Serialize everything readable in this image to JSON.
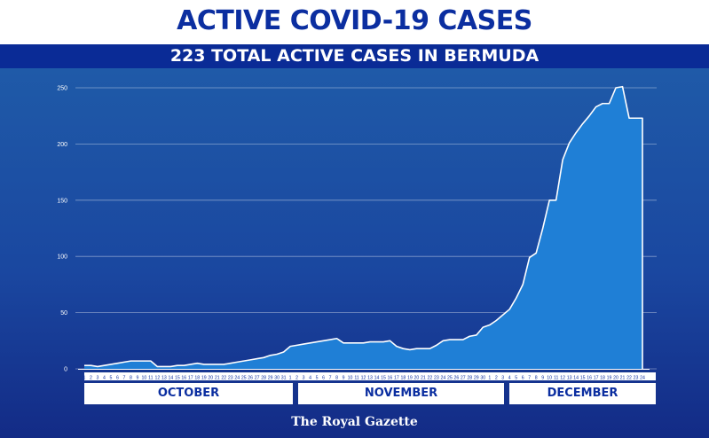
{
  "header": {
    "title": "ACTIVE COVID-19 CASES",
    "subtitle": "223 TOTAL ACTIVE CASES IN BERMUDA"
  },
  "credit": "The Royal Gazette",
  "colors": {
    "title": "#0b2ea0",
    "banner": "#0a2b96",
    "area_fill": "#1f7fd6",
    "line": "#ffffff",
    "panel_top": "#1f5aa8",
    "panel_bottom": "#132b86"
  },
  "chart_data": {
    "type": "area",
    "ylim": [
      0,
      250
    ],
    "yticks": [
      0,
      50,
      100,
      150,
      200,
      250
    ],
    "grid": true,
    "months": [
      {
        "name": "OCTOBER",
        "days": 31
      },
      {
        "name": "NOVEMBER",
        "days": 30
      },
      {
        "name": "DECEMBER",
        "days": 24
      }
    ],
    "series": [
      {
        "values": [
          3,
          3,
          2,
          3,
          4,
          5,
          6,
          7,
          7,
          7,
          7,
          2,
          2,
          2,
          3,
          3,
          4,
          5,
          4,
          4,
          4,
          4,
          5,
          6,
          7,
          8,
          9,
          10,
          12,
          13,
          15,
          20,
          21,
          22,
          23,
          24,
          25,
          26,
          27,
          23,
          23,
          23,
          23,
          24,
          24,
          24,
          25,
          20,
          18,
          17,
          18,
          18,
          18,
          21,
          25,
          26,
          26,
          26,
          29,
          30,
          37,
          39,
          43,
          48,
          53,
          63,
          75,
          99,
          103,
          125,
          150,
          150,
          186,
          201,
          210,
          218,
          225,
          233,
          236,
          236,
          250,
          251,
          223,
          223,
          223
        ]
      }
    ]
  }
}
